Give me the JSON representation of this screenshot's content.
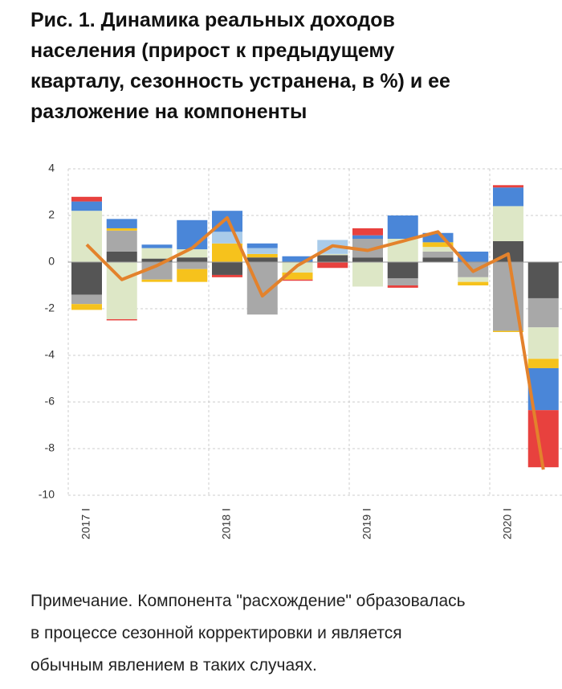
{
  "chart_data": {
    "type": "bar",
    "title": "Рис. 1. Динамика реальных доходов населения (прирост к предыдущему кварталу, сезонность устранена, в %) и ее разложение на компоненты",
    "categories": [
      "2017 I",
      null,
      null,
      null,
      "2018 I",
      null,
      null,
      null,
      "2019 I",
      null,
      null,
      null,
      "2020 I",
      null
    ],
    "series": [
      {
        "color": "#555555",
        "values": [
          -1.4,
          0.45,
          0.15,
          0.2,
          -0.55,
          0.2,
          0,
          0.3,
          0.2,
          -0.7,
          0.2,
          0,
          0.9,
          -1.55
        ]
      },
      {
        "color": "#a8a8a8",
        "values": [
          -0.4,
          0.9,
          -0.75,
          -0.3,
          0,
          -2.25,
          0,
          0,
          0.8,
          -0.3,
          0.25,
          -0.65,
          -2.95,
          -1.25
        ]
      },
      {
        "color": "#dde7c6",
        "values": [
          2.2,
          -2.45,
          0.45,
          0.35,
          0,
          0,
          -0.45,
          0.05,
          -1.05,
          1.0,
          0.2,
          -0.2,
          1.5,
          -1.35
        ]
      },
      {
        "color": "#f6c21c",
        "values": [
          -0.25,
          0.1,
          -0.1,
          -0.55,
          0.8,
          0.15,
          -0.3,
          0,
          0,
          0,
          0.2,
          -0.15,
          -0.05,
          -0.4
        ]
      },
      {
        "color": "#a9cbe9",
        "values": [
          0,
          0,
          0,
          0,
          0.5,
          0.25,
          0,
          0.6,
          0,
          0,
          0,
          0,
          0,
          0
        ]
      },
      {
        "color": "#4a86d8",
        "values": [
          0.4,
          0.4,
          0.15,
          1.25,
          0.9,
          0.2,
          0.25,
          0,
          0.15,
          1.0,
          0.4,
          0.45,
          0.8,
          -1.8
        ]
      },
      {
        "color": "#e8413e",
        "values": [
          0.2,
          -0.05,
          0,
          0,
          -0.1,
          0,
          -0.05,
          -0.25,
          0.3,
          -0.1,
          0,
          0,
          0.1,
          -2.45
        ]
      },
      {
        "type": "line",
        "color": "#e3822c",
        "values": [
          0.75,
          -0.75,
          -0.15,
          0.6,
          1.9,
          -1.45,
          -0.15,
          0.7,
          0.5,
          0.9,
          1.3,
          -0.4,
          0.35,
          -8.9
        ]
      }
    ],
    "ylim": [
      -10,
      4
    ],
    "yticks": [
      -10,
      -8,
      -6,
      -4,
      -2,
      0,
      2,
      4
    ],
    "grid": true
  },
  "note": [
    "Примечание. Компонента \"расхождение\" образовалась",
    "в процессе сезонной корректировки и является",
    "обычным явлением в таких случаях."
  ]
}
